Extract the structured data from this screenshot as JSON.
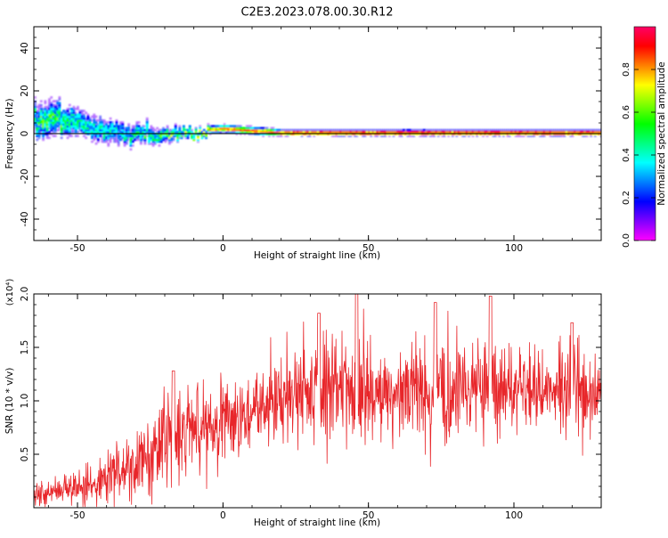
{
  "figure": {
    "title": "C2E3.2023.078.00.30.R12"
  },
  "colors": {
    "snr_line": "#e8262a",
    "reference_line": "#000000",
    "colormap": [
      "#ff00ff",
      "#7f00ff",
      "#0000ff",
      "#0080ff",
      "#00ffff",
      "#00ff80",
      "#00ff00",
      "#80ff00",
      "#ffff00",
      "#ff8000",
      "#ff0000",
      "#ff0066"
    ]
  },
  "chart_data": [
    {
      "type": "heatmap",
      "title": "",
      "xlabel": "Height of straight line (km)",
      "ylabel": "Frequency (Hz)",
      "xlim": [
        -65,
        130
      ],
      "ylim": [
        -50,
        50
      ],
      "xticks": [
        -50,
        0,
        50,
        100
      ],
      "xtick_labels": [
        "-50",
        "0",
        "50",
        "100"
      ],
      "yticks": [
        -40,
        -20,
        0,
        20,
        40
      ],
      "ytick_labels": [
        "-40",
        "-20",
        "0",
        "20",
        "40"
      ],
      "grid": false,
      "reference_line_y": 0,
      "colorbar": {
        "label": "Normalized spectral amplitude",
        "range": [
          0,
          1
        ],
        "ticks": [
          0.0,
          0.2,
          0.4,
          0.6,
          0.8
        ],
        "tick_labels": [
          "0.0",
          "0.2",
          "0.4",
          "0.6",
          "0.8"
        ]
      },
      "ridge": {
        "x": [
          -65,
          -60,
          -55,
          -50,
          -45,
          -40,
          -35,
          -30,
          -25,
          -20,
          -15,
          -10,
          -5,
          0,
          5,
          10,
          15,
          20,
          30,
          50,
          100,
          130
        ],
        "frequency": [
          5,
          7,
          6,
          4,
          2,
          1,
          0,
          -1,
          -2,
          -1,
          0,
          0,
          1.5,
          2,
          1.5,
          1,
          0.5,
          0,
          0,
          0,
          0,
          0
        ],
        "amplitude": [
          0.45,
          0.5,
          0.45,
          0.42,
          0.38,
          0.35,
          0.35,
          0.4,
          0.45,
          0.5,
          0.55,
          0.65,
          0.8,
          0.9,
          0.88,
          0.9,
          0.92,
          0.95,
          0.97,
          1.0,
          1.0,
          1.0
        ],
        "spread_hz": [
          12,
          12,
          11,
          10,
          9,
          9,
          8,
          7,
          6,
          5,
          4,
          3,
          2.5,
          2.5,
          2.5,
          2.5,
          2.5,
          2,
          2,
          2,
          2,
          2
        ]
      }
    },
    {
      "type": "line",
      "title": "",
      "xlabel": "Height of straight line (km)",
      "ylabel": "SNR (10 * v/v)",
      "scale_label": "(x10⁴)",
      "xlim": [
        -65,
        130
      ],
      "ylim": [
        0,
        2.0
      ],
      "xticks": [
        -50,
        0,
        50,
        100
      ],
      "xtick_labels": [
        "-50",
        "0",
        "50",
        "100"
      ],
      "yticks": [
        0.5,
        1.0,
        1.5,
        2.0
      ],
      "ytick_labels": [
        "0.5",
        "1.0",
        "1.5",
        "2.0"
      ],
      "grid": false,
      "envelope": {
        "x": [
          -65,
          -60,
          -55,
          -50,
          -45,
          -40,
          -35,
          -30,
          -25,
          -20,
          -15,
          -10,
          -5,
          0,
          5,
          10,
          15,
          20,
          25,
          30,
          35,
          40,
          45,
          50,
          55,
          60,
          65,
          70,
          75,
          80,
          85,
          90,
          95,
          100,
          105,
          110,
          115,
          120,
          125,
          130
        ],
        "mean": [
          0.12,
          0.14,
          0.16,
          0.18,
          0.22,
          0.28,
          0.35,
          0.42,
          0.5,
          0.58,
          0.65,
          0.72,
          0.78,
          0.82,
          0.86,
          0.92,
          1.0,
          1.05,
          1.08,
          1.1,
          1.1,
          1.1,
          1.12,
          1.1,
          1.1,
          1.12,
          1.1,
          1.1,
          1.15,
          1.1,
          1.1,
          1.12,
          1.15,
          1.1,
          1.12,
          1.12,
          1.1,
          1.15,
          1.05,
          1.08
        ],
        "amplitude": [
          0.08,
          0.09,
          0.1,
          0.12,
          0.14,
          0.18,
          0.22,
          0.26,
          0.3,
          0.36,
          0.38,
          0.4,
          0.35,
          0.3,
          0.28,
          0.28,
          0.3,
          0.32,
          0.34,
          0.38,
          0.4,
          0.38,
          0.42,
          0.36,
          0.32,
          0.34,
          0.32,
          0.36,
          0.38,
          0.32,
          0.3,
          0.38,
          0.35,
          0.3,
          0.3,
          0.3,
          0.32,
          0.35,
          0.32,
          0.25
        ]
      },
      "peaks": [
        {
          "x": -17,
          "y": 1.28
        },
        {
          "x": 33,
          "y": 1.82
        },
        {
          "x": 46,
          "y": 2.0
        },
        {
          "x": 73,
          "y": 1.92
        },
        {
          "x": 92,
          "y": 1.98
        },
        {
          "x": 120,
          "y": 1.73
        }
      ]
    }
  ]
}
